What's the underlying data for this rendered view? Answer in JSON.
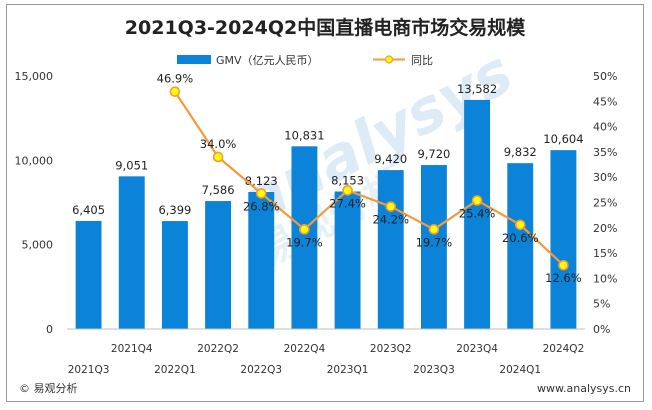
{
  "chart_data": {
    "type": "bar",
    "title": "2021Q3-2024Q2中国直播电商市场交易规模",
    "categories": [
      "2021Q3",
      "2021Q4",
      "2022Q1",
      "2022Q2",
      "2022Q3",
      "2022Q4",
      "2023Q1",
      "2023Q2",
      "2023Q3",
      "2023Q4",
      "2024Q1",
      "2024Q2"
    ],
    "series": [
      {
        "name": "GMV（亿元人民币）",
        "type": "bar",
        "axis": "left",
        "color": "#0a83d8",
        "values": [
          6405,
          9051,
          6399,
          7586,
          8123,
          10831,
          8153,
          9420,
          9720,
          13582,
          9832,
          10604
        ],
        "labels": [
          "6,405",
          "9,051",
          "6,399",
          "7,586",
          "8,123",
          "10,831",
          "8,153",
          "9,420",
          "9,720",
          "13,582",
          "9,832",
          "10,604"
        ]
      },
      {
        "name": "同比",
        "type": "line",
        "axis": "right",
        "color": "#f29a3c",
        "values": [
          null,
          null,
          46.9,
          34.0,
          26.8,
          19.7,
          27.4,
          24.2,
          19.7,
          25.4,
          20.6,
          12.6
        ],
        "labels": [
          null,
          null,
          "46.9%",
          "34.0%",
          "26.8%",
          "19.7%",
          "27.4%",
          "24.2%",
          "19.7%",
          "25.4%",
          "20.6%",
          "12.6%"
        ]
      }
    ],
    "y_left": {
      "ylim": [
        0,
        15000
      ],
      "ticks": [
        0,
        5000,
        10000,
        15000
      ],
      "tick_labels": [
        "0",
        "5,000",
        "10,000",
        "15,000"
      ]
    },
    "y_right": {
      "ylim": [
        0,
        50
      ],
      "ticks": [
        0,
        5,
        10,
        15,
        20,
        25,
        30,
        35,
        40,
        45,
        50
      ],
      "tick_labels": [
        "0%",
        "5%",
        "10%",
        "15%",
        "20%",
        "25%",
        "30%",
        "35%",
        "40%",
        "45%",
        "50%"
      ]
    },
    "legend": {
      "position": "top-center"
    },
    "grid": false
  },
  "footer": {
    "source": "© 易观分析",
    "site": "www.analysys.cn"
  },
  "watermark": {
    "text": "analysys",
    "subtext": "易观分析"
  },
  "colors": {
    "bar": "#0a83d8",
    "line": "#f29a3c",
    "marker_fill": "#ffff00"
  }
}
